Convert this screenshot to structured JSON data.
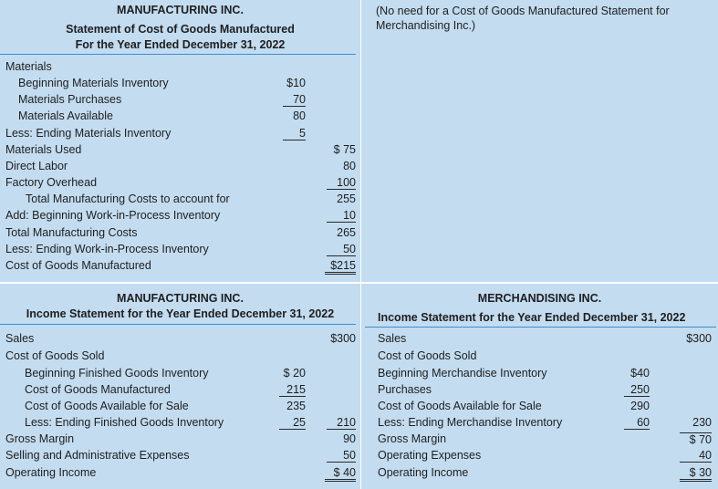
{
  "mfg_cogm": {
    "company": "MANUFACTURING INC.",
    "title": "Statement of Cost of Goods Manufactured",
    "period": "For the Year Ended December 31, 2022",
    "rows": [
      {
        "label": "Materials",
        "col1": "",
        "col2": ""
      },
      {
        "label": "Beginning Materials Inventory",
        "col1": "$10",
        "col2": ""
      },
      {
        "label": "Materials Purchases",
        "col1": "70",
        "col2": ""
      },
      {
        "label": "Materials Available",
        "col1": "80",
        "col2": ""
      },
      {
        "label": "Less: Ending Materials Inventory",
        "col1": "5",
        "col2": ""
      },
      {
        "label": "Materials Used",
        "col1": "",
        "col2": "$ 75"
      },
      {
        "label": "Direct Labor",
        "col1": "",
        "col2": "80"
      },
      {
        "label": "Factory Overhead",
        "col1": "",
        "col2": "100"
      },
      {
        "label": "Total Manufacturing Costs to account for",
        "col1": "",
        "col2": "255"
      },
      {
        "label": "Add: Beginning Work-in-Process Inventory",
        "col1": "",
        "col2": "10"
      },
      {
        "label": "Total Manufacturing Costs",
        "col1": "",
        "col2": "265"
      },
      {
        "label": "Less: Ending Work-in-Process Inventory",
        "col1": "",
        "col2": "50"
      },
      {
        "label": "Cost of Goods Manufactured",
        "col1": "",
        "col2": "$215"
      }
    ]
  },
  "merch_note": "(No need for a Cost of Goods Manufactured Statement for Merchandising Inc.)",
  "mfg_income": {
    "company": "MANUFACTURING INC.",
    "title": "Income Statement for the Year Ended December 31, 2022",
    "rows": [
      {
        "label": "Sales",
        "col1": "",
        "col2": "$300"
      },
      {
        "label": "Cost of Goods Sold",
        "col1": "",
        "col2": ""
      },
      {
        "label": "Beginning Finished Goods Inventory",
        "col1": "$ 20",
        "col2": ""
      },
      {
        "label": "Cost of Goods Manufactured",
        "col1": "215",
        "col2": ""
      },
      {
        "label": "Cost of Goods Available for Sale",
        "col1": "235",
        "col2": ""
      },
      {
        "label": "Less: Ending Finished Goods Inventory",
        "col1": "25",
        "col2": "210"
      },
      {
        "label": "Gross Margin",
        "col1": "",
        "col2": "90"
      },
      {
        "label": "Selling and Administrative Expenses",
        "col1": "",
        "col2": "50"
      },
      {
        "label": "Operating Income",
        "col1": "",
        "col2": "$ 40"
      }
    ]
  },
  "merch_income": {
    "company": "MERCHANDISING INC.",
    "title": "Income Statement for the Year Ended December 31, 2022",
    "rows": [
      {
        "label": "Sales",
        "col1": "",
        "col2": "$300"
      },
      {
        "label": "Cost of Goods Sold",
        "col1": "",
        "col2": ""
      },
      {
        "label": "Beginning Merchandise Inventory",
        "col1": "$40",
        "col2": ""
      },
      {
        "label": "Purchases",
        "col1": "250",
        "col2": ""
      },
      {
        "label": "Cost of Goods Available for Sale",
        "col1": "290",
        "col2": ""
      },
      {
        "label": "Less: Ending Merchandise Inventory",
        "col1": "60",
        "col2": "230"
      },
      {
        "label": "Gross Margin",
        "col1": "",
        "col2": "$ 70"
      },
      {
        "label": "Operating Expenses",
        "col1": "",
        "col2": "40"
      },
      {
        "label": "Operating Income",
        "col1": "",
        "col2": "$ 30"
      }
    ]
  }
}
